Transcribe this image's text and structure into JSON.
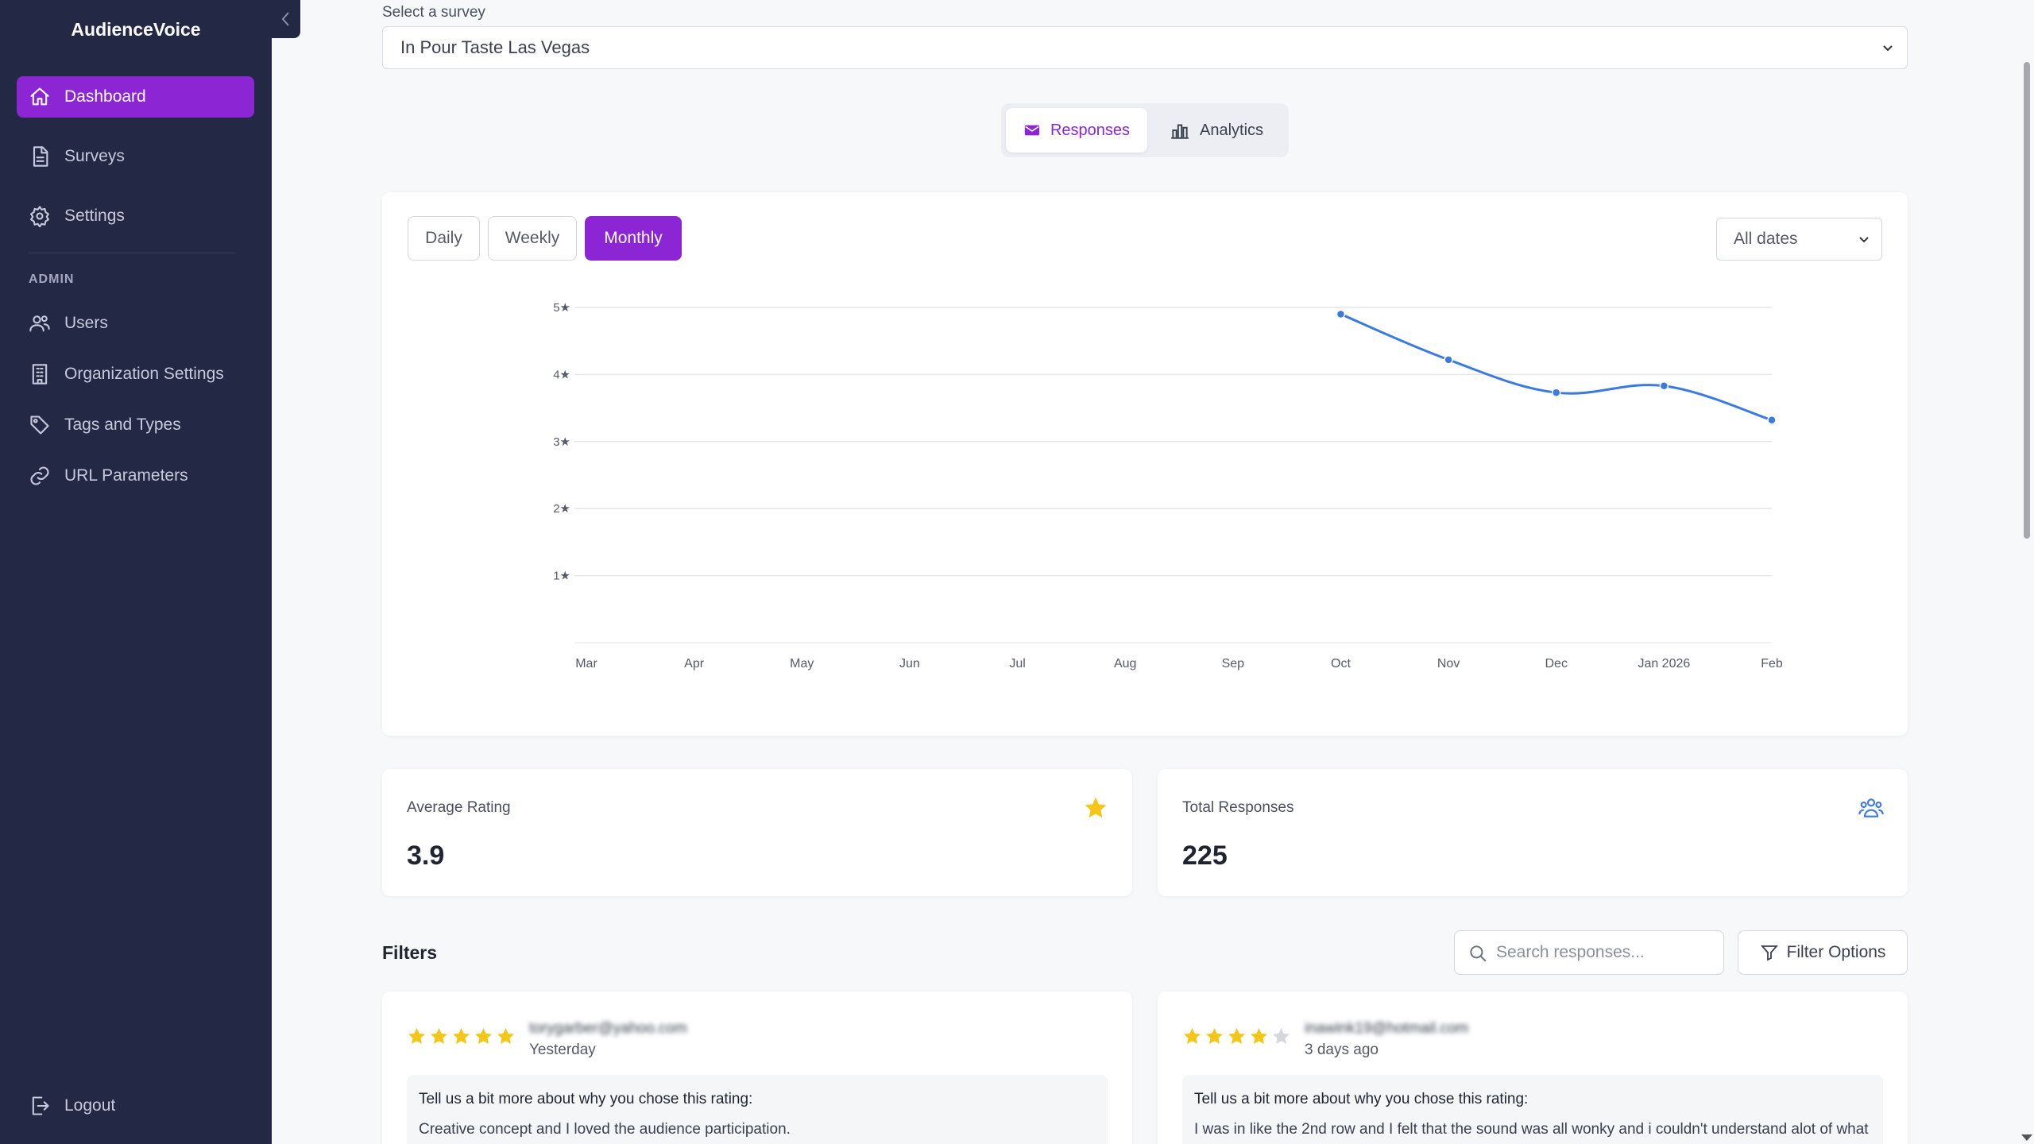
{
  "app": {
    "brand": "AudienceVoice"
  },
  "sidebar": {
    "items": [
      {
        "label": "Dashboard",
        "icon": "home-icon",
        "active": true
      },
      {
        "label": "Surveys",
        "icon": "document-icon"
      },
      {
        "label": "Settings",
        "icon": "gear-icon"
      }
    ],
    "admin_label": "ADMIN",
    "admin_items": [
      {
        "label": "Users",
        "icon": "users-icon"
      },
      {
        "label": "Organization Settings",
        "icon": "building-icon"
      },
      {
        "label": "Tags and Types",
        "icon": "tag-icon"
      },
      {
        "label": "URL Parameters",
        "icon": "link-icon"
      }
    ],
    "logout_label": "Logout"
  },
  "survey": {
    "label": "Select a survey",
    "selected": "In Pour Taste Las Vegas"
  },
  "tabs": [
    {
      "label": "Responses",
      "icon": "envelope-icon",
      "active": true
    },
    {
      "label": "Analytics",
      "icon": "bar-chart-icon",
      "active": false
    }
  ],
  "period": {
    "options": [
      "Daily",
      "Weekly",
      "Monthly"
    ],
    "selected": "Monthly"
  },
  "date_filter": {
    "selected": "All dates"
  },
  "chart_data": {
    "type": "line",
    "categories": [
      "Mar",
      "Apr",
      "May",
      "Jun",
      "Jul",
      "Aug",
      "Sep",
      "Oct",
      "Nov",
      "Dec",
      "Jan 2026",
      "Feb"
    ],
    "values": [
      null,
      null,
      null,
      null,
      null,
      null,
      null,
      4.9,
      4.22,
      3.73,
      3.83,
      3.32
    ],
    "y_ticks": [
      "1★",
      "2★",
      "3★",
      "4★",
      "5★"
    ],
    "ylim": [
      0,
      5
    ],
    "grid": true,
    "line_color": "#3b7be0"
  },
  "stats": {
    "average_rating": {
      "label": "Average Rating",
      "value": "3.9",
      "icon": "star-icon",
      "icon_color": "#f5c518"
    },
    "total_responses": {
      "label": "Total Responses",
      "value": "225",
      "icon": "users-icon",
      "icon_color": "#3b7be0"
    }
  },
  "filters": {
    "title": "Filters",
    "search_placeholder": "Search responses...",
    "filter_button": "Filter Options"
  },
  "responses": [
    {
      "rating": 5,
      "email": "torygarber@yahoo.com",
      "time": "Yesterday",
      "question": "Tell us a bit more about why you chose this rating:",
      "answer": "Creative concept and I loved the audience participation."
    },
    {
      "rating": 4,
      "email": "inawink19@hotmail.com",
      "time": "3 days ago",
      "question": "Tell us a bit more about why you chose this rating:",
      "answer": "I was in like the 2nd row and I felt that the sound was all wonky and i couldn't understand alot of what"
    }
  ]
}
